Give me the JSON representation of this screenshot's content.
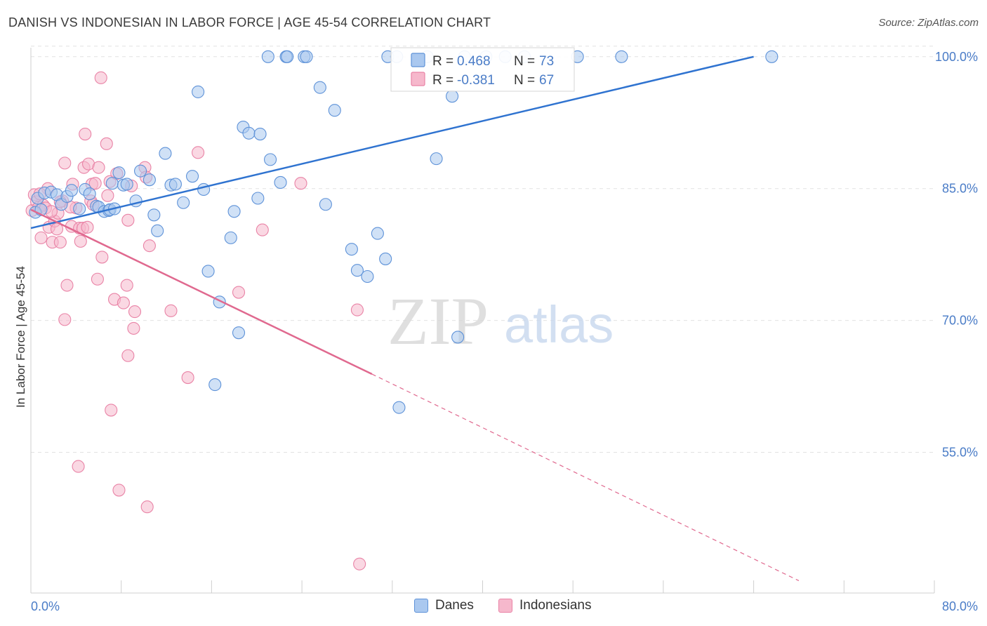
{
  "header": {
    "title": "DANISH VS INDONESIAN IN LABOR FORCE | AGE 45-54 CORRELATION CHART",
    "source": "Source: ZipAtlas.com"
  },
  "watermark": {
    "zip": "ZIP",
    "atlas": "atlas"
  },
  "colors": {
    "danes_fill": "#aac8ef",
    "danes_stroke": "#5e92d8",
    "danes_line": "#2f73d0",
    "indo_fill": "#f6b8cc",
    "indo_stroke": "#e983a6",
    "indo_line": "#e0698f",
    "axis_text": "#4a7cc7",
    "grid": "#e2e2e2"
  },
  "chart_data": {
    "type": "scatter",
    "title": "DANISH VS INDONESIAN IN LABOR FORCE | AGE 45-54 CORRELATION CHART",
    "xlabel": "",
    "ylabel": "In Labor Force | Age 45-54",
    "xlim": [
      0,
      80
    ],
    "ylim": [
      39,
      101.5
    ],
    "x_tick_labels": [
      "0.0%",
      "80.0%"
    ],
    "y_ticks": [
      100,
      85,
      70,
      55
    ],
    "y_tick_labels": [
      "100.0%",
      "85.0%",
      "70.0%",
      "55.0%"
    ],
    "legend_stats": [
      {
        "r_label": "R =",
        "r_value": "0.468",
        "n_label": "N =",
        "n_value": "73"
      },
      {
        "r_label": "R =",
        "r_value": "-0.381",
        "n_label": "N =",
        "n_value": "67"
      }
    ],
    "series": [
      {
        "name": "Danes",
        "trend": {
          "x": [
            0,
            64
          ],
          "y": [
            80.5,
            100
          ],
          "dashed_to": null
        },
        "points": [
          [
            0.4,
            82.3
          ],
          [
            0.6,
            83.9
          ],
          [
            0.9,
            82.6
          ],
          [
            1.2,
            84.5
          ],
          [
            1.8,
            84.6
          ],
          [
            2.3,
            84.3
          ],
          [
            2.7,
            83.2
          ],
          [
            3.2,
            84.1
          ],
          [
            3.6,
            84.8
          ],
          [
            4.3,
            82.7
          ],
          [
            4.8,
            84.9
          ],
          [
            5.2,
            84.4
          ],
          [
            5.8,
            83.0
          ],
          [
            6.0,
            82.9
          ],
          [
            6.5,
            82.4
          ],
          [
            6.9,
            82.5
          ],
          [
            7.0,
            82.6
          ],
          [
            7.4,
            82.7
          ],
          [
            7.2,
            85.6
          ],
          [
            7.8,
            86.8
          ],
          [
            8.2,
            85.4
          ],
          [
            8.5,
            85.5
          ],
          [
            9.3,
            83.6
          ],
          [
            9.7,
            87.0
          ],
          [
            10.5,
            86.0
          ],
          [
            10.9,
            82.0
          ],
          [
            11.2,
            80.2
          ],
          [
            11.9,
            89.0
          ],
          [
            12.4,
            85.4
          ],
          [
            12.8,
            85.5
          ],
          [
            13.5,
            83.4
          ],
          [
            14.3,
            86.4
          ],
          [
            14.8,
            96.0
          ],
          [
            15.3,
            84.9
          ],
          [
            15.7,
            75.6
          ],
          [
            16.3,
            62.7
          ],
          [
            16.7,
            72.1
          ],
          [
            17.7,
            79.4
          ],
          [
            18.0,
            82.4
          ],
          [
            18.4,
            68.6
          ],
          [
            18.8,
            92.0
          ],
          [
            19.3,
            91.3
          ],
          [
            20.1,
            83.9
          ],
          [
            20.3,
            91.2
          ],
          [
            21.2,
            88.3
          ],
          [
            22.1,
            85.7
          ],
          [
            21.0,
            100.0
          ],
          [
            22.6,
            100.0
          ],
          [
            22.7,
            100.0
          ],
          [
            24.2,
            100.0
          ],
          [
            24.4,
            100.0
          ],
          [
            25.6,
            96.5
          ],
          [
            26.1,
            83.2
          ],
          [
            26.9,
            93.9
          ],
          [
            28.4,
            78.1
          ],
          [
            28.9,
            75.7
          ],
          [
            29.8,
            75.0
          ],
          [
            30.7,
            79.9
          ],
          [
            31.4,
            77.0
          ],
          [
            31.6,
            100.0
          ],
          [
            32.4,
            100.0
          ],
          [
            32.6,
            60.1
          ],
          [
            35.1,
            100.0
          ],
          [
            35.9,
            88.4
          ],
          [
            37.3,
            95.5
          ],
          [
            37.8,
            68.1
          ],
          [
            38.4,
            100.0
          ],
          [
            40.3,
            100.0
          ],
          [
            42.0,
            100.0
          ],
          [
            43.7,
            100.0
          ],
          [
            48.4,
            100.0
          ],
          [
            52.3,
            100.0
          ],
          [
            65.6,
            100.0
          ]
        ]
      },
      {
        "name": "Indonesians",
        "trend": {
          "x": [
            0,
            30.2
          ],
          "y": [
            82.6,
            63.9
          ],
          "dashed_to": [
            68,
            40.4
          ]
        },
        "points": [
          [
            0.1,
            82.5
          ],
          [
            0.3,
            84.3
          ],
          [
            0.5,
            83.5
          ],
          [
            0.7,
            82.9
          ],
          [
            0.9,
            79.4
          ],
          [
            1.1,
            83.1
          ],
          [
            1.3,
            82.8
          ],
          [
            1.5,
            85.0
          ],
          [
            1.6,
            80.6
          ],
          [
            1.9,
            78.9
          ],
          [
            2.1,
            81.3
          ],
          [
            2.3,
            80.4
          ],
          [
            2.4,
            82.2
          ],
          [
            2.6,
            78.9
          ],
          [
            2.8,
            83.6
          ],
          [
            3.0,
            87.9
          ],
          [
            3.2,
            74.0
          ],
          [
            3.0,
            70.1
          ],
          [
            3.6,
            80.7
          ],
          [
            3.7,
            85.5
          ],
          [
            4.0,
            82.8
          ],
          [
            4.3,
            80.5
          ],
          [
            4.4,
            79.0
          ],
          [
            4.6,
            80.5
          ],
          [
            4.7,
            87.4
          ],
          [
            4.8,
            91.2
          ],
          [
            5.0,
            80.6
          ],
          [
            5.1,
            87.8
          ],
          [
            5.3,
            83.6
          ],
          [
            5.4,
            85.5
          ],
          [
            5.7,
            85.6
          ],
          [
            5.9,
            74.7
          ],
          [
            6.0,
            87.4
          ],
          [
            6.2,
            97.6
          ],
          [
            6.3,
            77.2
          ],
          [
            6.8,
            84.2
          ],
          [
            6.7,
            90.1
          ],
          [
            7.0,
            85.8
          ],
          [
            7.1,
            59.8
          ],
          [
            7.4,
            72.4
          ],
          [
            7.6,
            86.7
          ],
          [
            7.8,
            50.7
          ],
          [
            8.2,
            72.0
          ],
          [
            8.5,
            74.0
          ],
          [
            8.6,
            81.4
          ],
          [
            8.6,
            66.0
          ],
          [
            8.9,
            85.3
          ],
          [
            9.1,
            69.1
          ],
          [
            9.2,
            71.0
          ],
          [
            10.1,
            87.4
          ],
          [
            10.2,
            86.3
          ],
          [
            10.3,
            48.8
          ],
          [
            10.5,
            78.5
          ],
          [
            12.4,
            71.1
          ],
          [
            13.9,
            63.5
          ],
          [
            14.8,
            89.1
          ],
          [
            18.4,
            73.2
          ],
          [
            20.5,
            80.3
          ],
          [
            23.9,
            85.6
          ],
          [
            28.9,
            71.2
          ],
          [
            29.1,
            42.3
          ],
          [
            4.2,
            53.4
          ],
          [
            1.8,
            82.4
          ],
          [
            2.6,
            83.5
          ],
          [
            3.5,
            82.9
          ],
          [
            5.5,
            83.2
          ],
          [
            0.8,
            84.4
          ]
        ]
      }
    ]
  },
  "legend_bottom": {
    "items": [
      "Danes",
      "Indonesians"
    ]
  }
}
